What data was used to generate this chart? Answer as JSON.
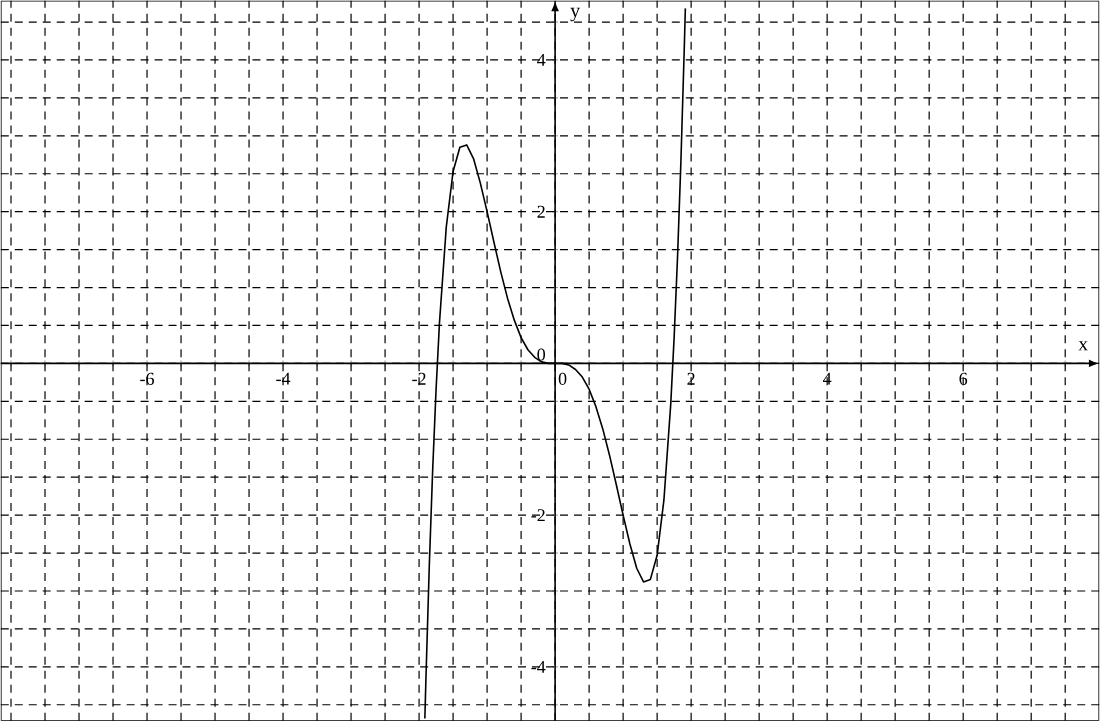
{
  "chart_data": {
    "type": "line",
    "xlabel": "x",
    "ylabel": "y",
    "x": [
      -1.915,
      -1.9,
      -1.85,
      -1.8,
      -1.75,
      -1.7,
      -1.6,
      -1.5,
      -1.4,
      -1.3,
      -1.2,
      -1.1,
      -1.0,
      -0.9,
      -0.8,
      -0.7,
      -0.6,
      -0.5,
      -0.4,
      -0.3,
      -0.2,
      -0.1,
      0,
      0.1,
      0.2,
      0.3,
      0.4,
      0.5,
      0.6,
      0.7,
      0.8,
      0.9,
      1.0,
      1.1,
      1.2,
      1.3,
      1.4,
      1.5,
      1.6,
      1.7,
      1.75,
      1.8,
      1.85,
      1.9,
      1.915
    ],
    "series": [
      {
        "color": "#000000",
        "values": [
          -4.68,
          -4.18,
          -2.67,
          -1.4,
          -0.34,
          0.54,
          1.8,
          2.53,
          2.85,
          2.88,
          2.7,
          2.38,
          2.0,
          1.6,
          1.21,
          0.86,
          0.57,
          0.34,
          0.18,
          0.08,
          0.02,
          0.0,
          0,
          0.0,
          -0.02,
          -0.08,
          -0.18,
          -0.34,
          -0.57,
          -0.86,
          -1.21,
          -1.6,
          -2.0,
          -2.38,
          -2.7,
          -2.88,
          -2.85,
          -2.53,
          -1.8,
          -0.54,
          0.34,
          1.4,
          2.67,
          4.18,
          4.68
        ]
      }
    ],
    "xlim": [
      -8.15,
      8.0
    ],
    "ylim": [
      -4.71,
      4.78
    ],
    "xticks": [
      {
        "value": -8,
        "label": null
      },
      {
        "value": -7.5,
        "label": null
      },
      {
        "value": -7,
        "label": null
      },
      {
        "value": -6.5,
        "label": null
      },
      -6,
      {
        "value": -5.5,
        "label": null
      },
      {
        "value": -5,
        "label": null
      },
      {
        "value": -4.5,
        "label": null
      },
      -4,
      {
        "value": -3.5,
        "label": null
      },
      {
        "value": -3,
        "label": null
      },
      {
        "value": -2.5,
        "label": null
      },
      -2,
      {
        "value": -1.5,
        "label": null
      },
      {
        "value": -1,
        "label": null
      },
      {
        "value": -0.5,
        "label": null
      },
      0,
      {
        "value": 0.5,
        "label": null
      },
      {
        "value": 1,
        "label": null
      },
      {
        "value": 1.5,
        "label": null
      },
      2,
      {
        "value": 2.5,
        "label": null
      },
      {
        "value": 3,
        "label": null
      },
      {
        "value": 3.5,
        "label": null
      },
      4,
      {
        "value": 4.5,
        "label": null
      },
      {
        "value": 5,
        "label": null
      },
      {
        "value": 5.5,
        "label": null
      },
      6,
      {
        "value": 6.5,
        "label": null
      },
      {
        "value": 7,
        "label": null
      },
      {
        "value": 7.5,
        "label": null
      }
    ],
    "yticks": [
      {
        "value": -4.5,
        "label": null
      },
      -4,
      {
        "value": -3.5,
        "label": null
      },
      {
        "value": -3,
        "label": null
      },
      {
        "value": -2.5,
        "label": null
      },
      -2,
      {
        "value": -1.5,
        "label": null
      },
      {
        "value": -1,
        "label": null
      },
      {
        "value": -0.5,
        "label": null
      },
      0,
      {
        "value": 0.5,
        "label": null
      },
      {
        "value": 1,
        "label": null
      },
      {
        "value": 1.5,
        "label": null
      },
      2,
      {
        "value": 2.5,
        "label": null
      },
      {
        "value": 3,
        "label": null
      },
      {
        "value": 3.5,
        "label": null
      },
      4,
      {
        "value": 4.5,
        "label": null
      }
    ],
    "grid": true,
    "marker": "none",
    "line_style": "solid"
  }
}
